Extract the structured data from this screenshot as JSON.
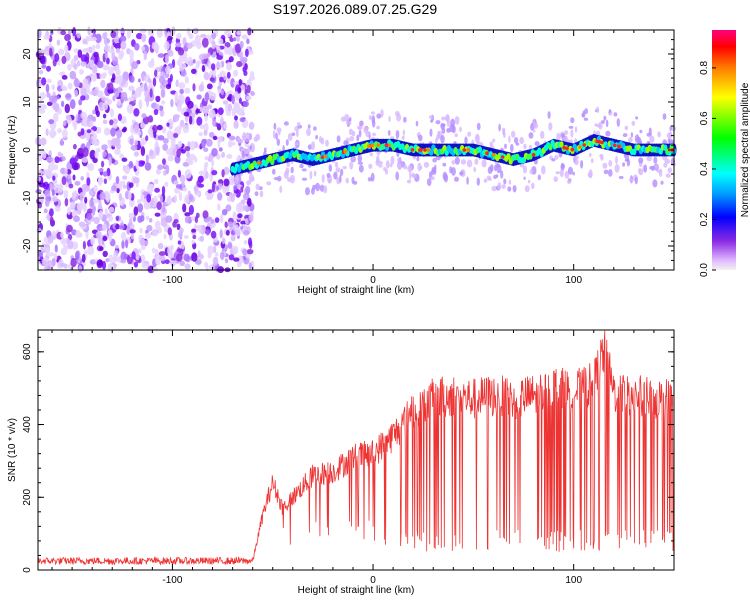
{
  "figure_title": "S197.2026.089.07.25.G29",
  "chart_data": [
    {
      "type": "heatmap",
      "xlabel": "Height of straight line (km)",
      "ylabel": "Frequency (Hz)",
      "xlim": [
        -167,
        150
      ],
      "ylim": [
        -25,
        25
      ],
      "xticks": [
        -100,
        0,
        100
      ],
      "yticks": [
        -20,
        -10,
        0,
        10,
        20
      ],
      "noise_region": {
        "x_from": -167,
        "x_to": -60
      },
      "signal_trace": {
        "x": [
          -70,
          -60,
          -50,
          -40,
          -30,
          -20,
          -10,
          0,
          10,
          20,
          30,
          40,
          50,
          60,
          70,
          80,
          90,
          100,
          110,
          120,
          130,
          140,
          150
        ],
        "y": [
          -4,
          -3,
          -2,
          -1,
          -2,
          -1,
          0,
          1,
          1,
          0,
          0,
          0,
          0,
          -1,
          -2,
          -1,
          1,
          0,
          2,
          1,
          0,
          0,
          0
        ]
      },
      "colorbar": {
        "label": "Normalized spectral amplitude",
        "range": [
          0,
          0.95
        ],
        "ticks": [
          0.0,
          0.2,
          0.4,
          0.6,
          0.8
        ],
        "tick_labels": [
          "0.0",
          "0.2",
          "0.4",
          "0.6",
          "0.8"
        ]
      }
    },
    {
      "type": "line",
      "xlabel": "Height of straight line (km)",
      "ylabel": "SNR (10 * v/v)",
      "xlim": [
        -167,
        150
      ],
      "ylim": [
        0,
        660
      ],
      "xticks": [
        -100,
        0,
        100
      ],
      "yticks": [
        0,
        200,
        400,
        600
      ],
      "color": "#ee3333",
      "series": [
        {
          "name": "SNR",
          "envelope_x": [
            -167,
            -150,
            -100,
            -70,
            -60,
            -55,
            -50,
            -45,
            -40,
            -30,
            -20,
            -10,
            0,
            10,
            15,
            20,
            30,
            40,
            50,
            60,
            70,
            80,
            90,
            100,
            110,
            115,
            120,
            130,
            140,
            150
          ],
          "envelope_y": [
            25,
            25,
            25,
            25,
            25,
            150,
            240,
            170,
            200,
            260,
            270,
            310,
            320,
            370,
            400,
            440,
            470,
            480,
            470,
            480,
            470,
            480,
            500,
            490,
            510,
            600,
            490,
            480,
            470,
            470
          ]
        }
      ]
    }
  ]
}
